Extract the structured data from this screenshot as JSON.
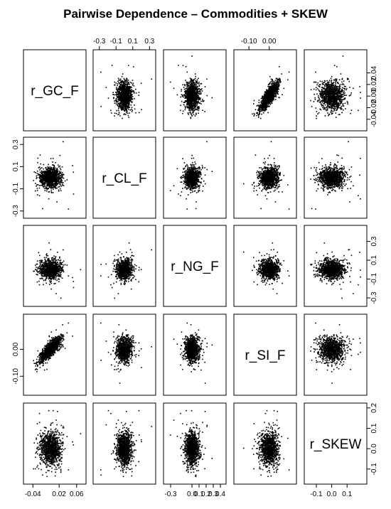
{
  "chart_data": {
    "type": "scatter",
    "title": "Pairwise Dependence – Commodities + SKEW",
    "variables": [
      "r_GC_F",
      "r_CL_F",
      "r_NG_F",
      "r_SI_F",
      "r_SKEW"
    ],
    "axes": [
      {
        "range": [
          -0.055,
          0.075
        ],
        "ticks": [
          -0.04,
          0.02,
          0.06
        ],
        "tick_labels": [
          "-0.04",
          "0.02",
          "0.06"
        ],
        "ticks_right": [
          -0.04,
          -0.02,
          0.0,
          0.02,
          0.04
        ],
        "tick_labels_right": [
          "-0.04",
          "-0.02",
          "0.00",
          "0.02",
          "0.04"
        ]
      },
      {
        "range": [
          -0.34,
          0.34
        ],
        "ticks": [
          -0.3,
          -0.1,
          0.1,
          0.3
        ],
        "tick_labels": [
          "-0.3",
          "-0.1",
          "0.1",
          "0.3"
        ]
      },
      {
        "range": [
          -0.36,
          0.44
        ],
        "ticks": [
          -0.3,
          0.0,
          0.1,
          0.2,
          0.3,
          0.4
        ],
        "tick_labels": [
          "-0.3",
          "0.0",
          "0.1",
          "0.2",
          "0.3",
          "0.4"
        ],
        "ticks_right": [
          -0.3,
          -0.1,
          0.1,
          0.3
        ],
        "tick_labels_right": [
          "-0.3",
          "-0.1",
          "0.1",
          "0.3"
        ]
      },
      {
        "range": [
          -0.16,
          0.12
        ],
        "ticks": [
          -0.1,
          0.0
        ],
        "tick_labels": [
          "-0.10",
          "0.00"
        ]
      },
      {
        "range": [
          -0.16,
          0.21
        ],
        "ticks": [
          -0.1,
          0.0,
          0.1
        ],
        "tick_labels": [
          "-0.1",
          "0.0",
          "0.1"
        ],
        "ticks_right": [
          -0.1,
          0.0,
          0.1,
          0.2
        ],
        "tick_labels_right": [
          "-0.1",
          "0.0",
          "0.1",
          "0.2"
        ]
      }
    ],
    "distribution": {
      "n_points": 1100,
      "sd": [
        0.012,
        0.045,
        0.05,
        0.022,
        0.04
      ],
      "correlations": [
        {
          "pair": [
            "r_GC_F",
            "r_SI_F"
          ],
          "rho": 0.8
        }
      ]
    },
    "grid": false,
    "legend": "none"
  }
}
